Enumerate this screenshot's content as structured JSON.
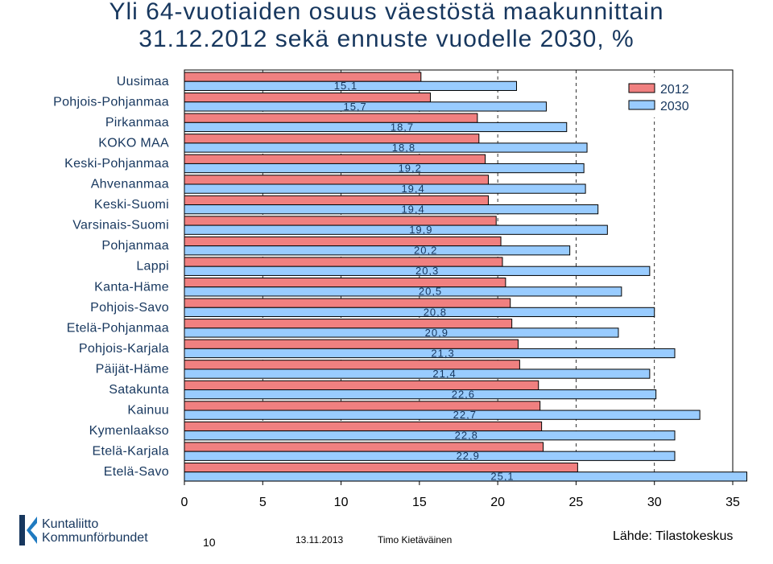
{
  "slide": {
    "title_line1": "Yli 64-vuotiaiden osuus väestöstä maakunnittain",
    "title_line2": "31.12.2012 sekä ennuste vuodelle 2030, %"
  },
  "chart_data": {
    "type": "bar",
    "orientation": "horizontal",
    "categories": [
      "Uusimaa",
      "Pohjois-Pohjanmaa",
      "Pirkanmaa",
      "KOKO MAA",
      "Keski-Pohjanmaa",
      "Ahvenanmaa",
      "Keski-Suomi",
      "Varsinais-Suomi",
      "Pohjanmaa",
      "Lappi",
      "Kanta-Häme",
      "Pohjois-Savo",
      "Etelä-Pohjanmaa",
      "Pohjois-Karjala",
      "Päijät-Häme",
      "Satakunta",
      "Kainuu",
      "Kymenlaakso",
      "Etelä-Karjala",
      "Etelä-Savo"
    ],
    "series": [
      {
        "name": "2012",
        "color": "#f08080",
        "values": [
          15.1,
          15.7,
          18.7,
          18.8,
          19.2,
          19.4,
          19.4,
          19.9,
          20.2,
          20.3,
          20.5,
          20.8,
          20.9,
          21.3,
          21.4,
          22.6,
          22.7,
          22.8,
          22.9,
          25.1
        ]
      },
      {
        "name": "2030",
        "color": "#99ccff",
        "values": [
          21.2,
          23.1,
          24.4,
          25.7,
          25.5,
          25.6,
          26.4,
          27.0,
          24.6,
          29.7,
          27.9,
          30.0,
          27.7,
          31.3,
          29.7,
          30.1,
          32.9,
          31.3,
          31.3,
          35.9
        ]
      }
    ],
    "data_labels_2012": [
      "15,1",
      "15,7",
      "18,7",
      "18,8",
      "19,2",
      "19,4",
      "19,4",
      "19,9",
      "20,2",
      "20,3",
      "20,5",
      "20,8",
      "20,9",
      "21,3",
      "21,4",
      "22,6",
      "22,7",
      "22,8",
      "22,9",
      "25,1"
    ],
    "x_ticks": [
      "0",
      "5",
      "10",
      "15",
      "20",
      "25",
      "30",
      "35"
    ],
    "xlim": [
      0,
      35
    ],
    "legend_position": "top-right",
    "grid": "vertical dashed"
  },
  "footer": {
    "logo_line1": "Kuntaliitto",
    "logo_line2": "Kommunförbundet",
    "page_number": "10",
    "date": "13.11.2013",
    "author": "Timo Kietäväinen",
    "source": "Lähde: Tilastokeskus"
  }
}
